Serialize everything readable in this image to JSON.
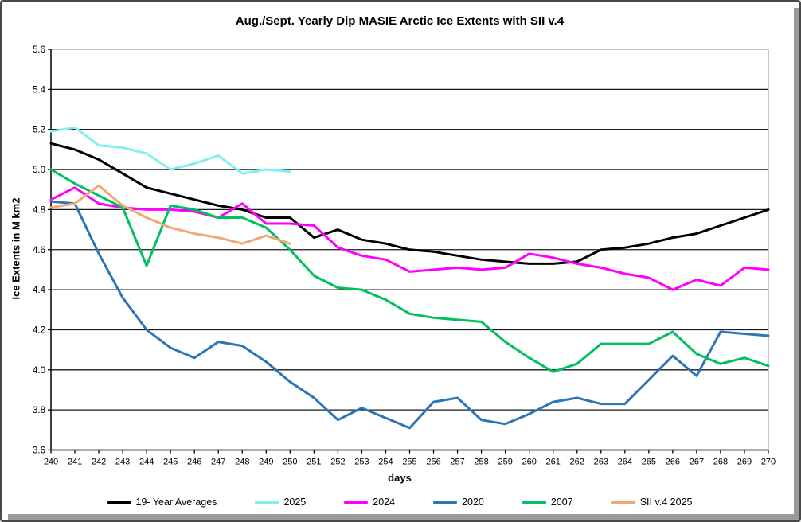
{
  "title": "Aug./Sept. Yearly Dip MASIE Arctic Ice Extents with SII v.4",
  "axes": {
    "x_title": "days",
    "y_title": "Ice Extents in M km2",
    "y_tick_labels": [
      "5.6",
      "5.4",
      "5.2",
      "5.0",
      "4.8",
      "4.6",
      "4.4",
      "4.2",
      "4.0",
      "3.8",
      "3.6"
    ]
  },
  "chart_data": {
    "type": "line",
    "title": "Aug./Sept. Yearly Dip MASIE Arctic Ice Extents with SII v.4",
    "xlabel": "days",
    "ylabel": "Ice Extents in M km2",
    "xlim": [
      240,
      270
    ],
    "ylim": [
      3.6,
      5.6
    ],
    "y_tick_step": 0.2,
    "grid": "horizontal",
    "legend_position": "bottom",
    "x": [
      240,
      241,
      242,
      243,
      244,
      245,
      246,
      247,
      248,
      249,
      250,
      251,
      252,
      253,
      254,
      255,
      256,
      257,
      258,
      259,
      260,
      261,
      262,
      263,
      264,
      265,
      266,
      267,
      268,
      269,
      270
    ],
    "series": [
      {
        "name": "19- Year Averages",
        "color": "#000000",
        "values": [
          5.13,
          5.1,
          5.05,
          4.98,
          4.91,
          4.88,
          4.85,
          4.82,
          4.8,
          4.76,
          4.76,
          4.66,
          4.7,
          4.65,
          4.63,
          4.6,
          4.59,
          4.57,
          4.55,
          4.54,
          4.53,
          4.53,
          4.54,
          4.6,
          4.61,
          4.63,
          4.66,
          4.68,
          4.72,
          4.76,
          4.8
        ]
      },
      {
        "name": "2025",
        "color": "#80F0F0",
        "values": [
          5.19,
          5.21,
          5.12,
          5.11,
          5.08,
          5.0,
          5.03,
          5.07,
          4.98,
          5.0,
          4.99
        ]
      },
      {
        "name": "2024",
        "color": "#FF00FF",
        "values": [
          4.85,
          4.91,
          4.83,
          4.81,
          4.8,
          4.8,
          4.79,
          4.76,
          4.83,
          4.73,
          4.73,
          4.72,
          4.61,
          4.57,
          4.55,
          4.49,
          4.5,
          4.51,
          4.5,
          4.51,
          4.58,
          4.56,
          4.53,
          4.51,
          4.48,
          4.46,
          4.4,
          4.45,
          4.42,
          4.51,
          4.5
        ]
      },
      {
        "name": "2020",
        "color": "#2E75B6",
        "values": [
          4.84,
          4.83,
          4.58,
          4.36,
          4.2,
          4.11,
          4.06,
          4.14,
          4.12,
          4.04,
          3.94,
          3.86,
          3.75,
          3.81,
          3.76,
          3.71,
          3.84,
          3.86,
          3.75,
          3.73,
          3.78,
          3.84,
          3.86,
          3.83,
          3.83,
          3.95,
          4.07,
          3.97,
          4.19,
          4.18,
          4.17
        ]
      },
      {
        "name": "2007",
        "color": "#00C060",
        "values": [
          5.0,
          4.93,
          4.87,
          4.81,
          4.52,
          4.82,
          4.8,
          4.76,
          4.76,
          4.71,
          4.6,
          4.47,
          4.41,
          4.4,
          4.35,
          4.28,
          4.26,
          4.25,
          4.24,
          4.14,
          4.06,
          3.99,
          4.03,
          4.13,
          4.13,
          4.13,
          4.19,
          4.08,
          4.03,
          4.06,
          4.02
        ]
      },
      {
        "name": "SII v.4 2025",
        "color": "#F0A878",
        "values": [
          4.81,
          4.83,
          4.92,
          4.82,
          4.76,
          4.71,
          4.68,
          4.66,
          4.63,
          4.67,
          4.63
        ]
      }
    ]
  }
}
